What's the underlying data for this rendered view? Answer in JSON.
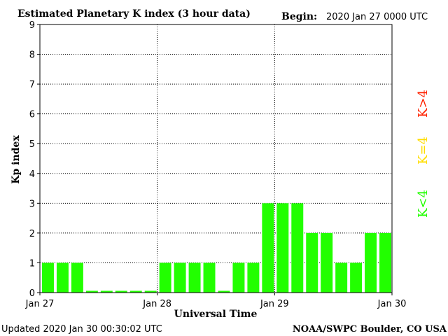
{
  "header": {
    "title": "Estimated Planetary K index (3 hour data)",
    "begin_label": "Begin:",
    "begin_value": "2020 Jan 27 0000 UTC"
  },
  "footer": {
    "updated": "Updated 2020 Jan 30 00:30:02 UTC",
    "source": "NOAA/SWPC Boulder, CO USA"
  },
  "legend": {
    "high": "K>4",
    "mid": "K=4",
    "low": "K<4"
  },
  "colors": {
    "low": "#22ff00",
    "mid": "#ffdd00",
    "high": "#ff2200",
    "grid": "#000000",
    "text": "#000000"
  },
  "chart_data": {
    "type": "bar",
    "ylabel": "Kp index",
    "xlabel": "Universal Time",
    "ylim": [
      0,
      9
    ],
    "yticks": [
      "0",
      "1",
      "2",
      "3",
      "4",
      "5",
      "6",
      "7",
      "8",
      "9"
    ],
    "xticks": [
      "Jan 27",
      "Jan 28",
      "Jan 29",
      "Jan 30"
    ],
    "grid": true,
    "series": [
      {
        "values": [
          1,
          1,
          1,
          0,
          0,
          0,
          0,
          0,
          1,
          1,
          1,
          1,
          0,
          1,
          1,
          3,
          3,
          3,
          2,
          2,
          1,
          1,
          2,
          2
        ]
      }
    ]
  }
}
